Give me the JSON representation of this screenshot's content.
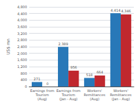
{
  "chart_data": {
    "type": "bar",
    "categories": [
      "Earnings from\nTourism\n(Aug)",
      "Earnings from\nTourism\n(Jan - Aug)",
      "Workers'\nRemittances\n(Aug)",
      "Workers'\nRemittances\n(Jan - Aug)"
    ],
    "series": [
      {
        "color": "#2878b8",
        "values": [
          271,
          2389,
          518,
          4414
        ],
        "value_labels": [
          "271",
          "2,389",
          "518",
          "4,414"
        ]
      },
      {
        "color": "#c0282e",
        "values": [
          0,
          956,
          664,
          4346
        ],
        "value_labels": [
          "0",
          "956",
          "664",
          "4,346"
        ]
      }
    ],
    "ylabel": "US$ mn",
    "ylim": [
      0,
      4800
    ],
    "yticks": [
      0,
      400,
      800,
      {
        "value": 1200,
        "label": "1,200"
      },
      {
        "value": 1600,
        "label": "1,600"
      },
      {
        "value": 2000,
        "label": "2,000"
      },
      {
        "value": 2400,
        "label": "2,400"
      },
      {
        "value": 2800,
        "label": "2,800"
      },
      {
        "value": 3200,
        "label": "3,200"
      },
      {
        "value": 3600,
        "label": "3,600"
      },
      {
        "value": 4000,
        "label": "4,000"
      },
      {
        "value": 4400,
        "label": "4,400"
      },
      {
        "value": 4800,
        "label": "4,800"
      }
    ],
    "grid": true,
    "data_labels": true
  }
}
